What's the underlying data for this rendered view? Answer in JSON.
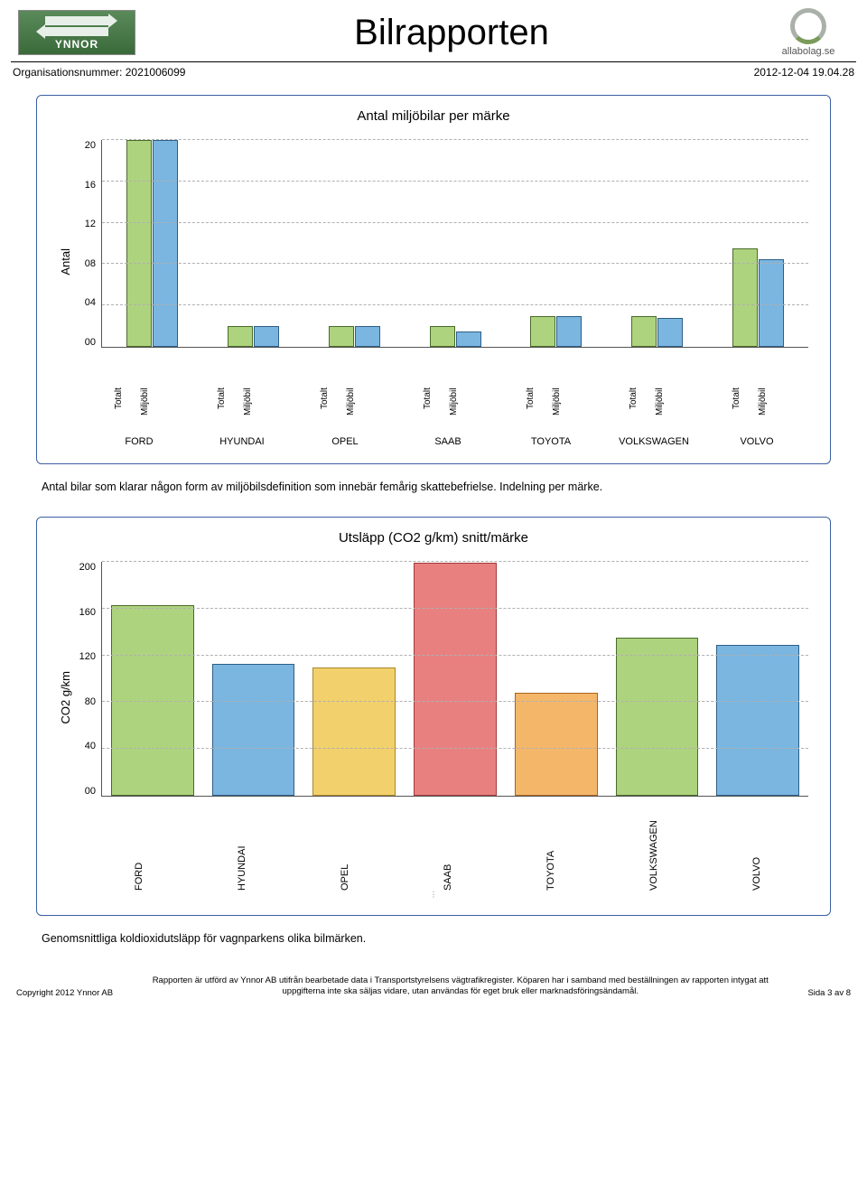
{
  "page": {
    "title": "Bilrapporten",
    "ynnor_text": "YNNOR",
    "allabolag_text": "allabolag.se",
    "org_label": "Organisationsnummer: 2021006099",
    "timestamp": "2012-12-04 19.04.28"
  },
  "chart1": {
    "type": "grouped-bar",
    "title": "Antal miljöbilar per märke",
    "ylabel": "Antal",
    "ylim": [
      0,
      20
    ],
    "ytick_step": 4,
    "yticks": [
      "20",
      "16",
      "12",
      "08",
      "04",
      "00"
    ],
    "series": [
      {
        "name": "Totalt",
        "color": "#aed37e",
        "border": "#4b6a2a"
      },
      {
        "name": "Miljöbil",
        "color": "#7ab6e0",
        "border": "#2d5e86"
      }
    ],
    "brands": [
      "FORD",
      "HYUNDAI",
      "OPEL",
      "SAAB",
      "TOYOTA",
      "VOLKSWAGEN",
      "VOLVO"
    ],
    "values": [
      [
        20,
        20
      ],
      [
        2,
        2
      ],
      [
        2,
        2
      ],
      [
        2,
        1.5
      ],
      [
        3,
        3
      ],
      [
        3,
        2.8
      ],
      [
        9.5,
        8.5
      ]
    ],
    "grid_color": "#b0b0b0",
    "background": "#ffffff",
    "caption": "Antal bilar som klarar någon form av miljöbilsdefinition som innebär femårig skattebefrielse. Indelning per märke."
  },
  "chart2": {
    "type": "bar",
    "title": "Utsläpp (CO2 g/km) snitt/märke",
    "ylabel": "CO2 g/km",
    "ylim": [
      0,
      200
    ],
    "ytick_step": 40,
    "yticks": [
      "200",
      "160",
      "120",
      "80",
      "40",
      "00"
    ],
    "brands": [
      "FORD",
      "HYUNDAI",
      "OPEL",
      "SAAB",
      "TOYOTA",
      "VOLKSWAGEN",
      "VOLVO"
    ],
    "values": [
      163,
      113,
      110,
      199,
      88,
      135,
      129
    ],
    "colors": [
      "#aed37e",
      "#7ab6e0",
      "#f2d06b",
      "#e88080",
      "#f4b76a",
      "#aed37e",
      "#7ab6e0"
    ],
    "border_colors": [
      "#4b6a2a",
      "#2d5e86",
      "#a8862c",
      "#a23a3a",
      "#a8651c",
      "#4b6a2a",
      "#2d5e86"
    ],
    "grid_color": "#b0b0b0",
    "caption": "Genomsnittliga koldioxidutsläpp för vagnparkens olika bilmärken."
  },
  "footer": {
    "left": "Copyright 2012 Ynnor AB",
    "mid": "Rapporten är utförd av Ynnor AB utifrån bearbetade data i Transportstyrelsens vägtrafikregister. Köparen har i samband med beställningen av rapporten intygat att uppgifterna inte ska säljas vidare, utan användas för eget bruk eller marknadsföringsändamål.",
    "right": "Sida 3 av 8"
  }
}
